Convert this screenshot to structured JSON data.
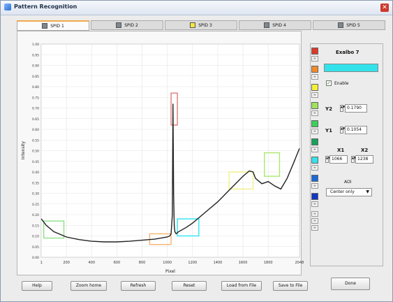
{
  "window": {
    "title": "Pattern Recognition",
    "close_glyph": "✕"
  },
  "tabs": [
    {
      "label": "SPID 1",
      "swatch": "#7f8790",
      "active": true
    },
    {
      "label": "SPID 2",
      "swatch": "#7f8790",
      "active": false
    },
    {
      "label": "SPID 3",
      "swatch": "#f6e83a",
      "active": false
    },
    {
      "label": "SPID 4",
      "swatch": "#7f8790",
      "active": false
    },
    {
      "label": "SPID 5",
      "swatch": "#7f8790",
      "active": false
    }
  ],
  "chart_data": {
    "type": "line",
    "xlabel": "Pixel",
    "ylabel": "Intensity",
    "xlim": [
      0,
      2048
    ],
    "ylim": [
      0,
      1.0
    ],
    "xticks": [
      1,
      200,
      400,
      600,
      800,
      1000,
      1200,
      1400,
      1600,
      1800,
      2048
    ],
    "yticks": [
      "0.00",
      "0.05",
      "0.10",
      "0.15",
      "0.20",
      "0.25",
      "0.30",
      "0.35",
      "0.40",
      "0.45",
      "0.50",
      "0.55",
      "0.60",
      "0.65",
      "0.70",
      "0.75",
      "0.80",
      "0.85",
      "0.90",
      "0.95",
      "1.00"
    ],
    "grid": true,
    "series": [
      {
        "color": "#222222",
        "x": [
          1,
          40,
          100,
          200,
          300,
          400,
          500,
          600,
          700,
          800,
          900,
          950,
          1000,
          1020,
          1030,
          1040,
          1045,
          1050,
          1055,
          1060,
          1070,
          1090,
          1150,
          1200,
          1300,
          1400,
          1500,
          1600,
          1650,
          1680,
          1700,
          1750,
          1800,
          1850,
          1900,
          1950,
          2000,
          2048
        ],
        "y": [
          0.18,
          0.15,
          0.12,
          0.095,
          0.083,
          0.075,
          0.072,
          0.072,
          0.075,
          0.08,
          0.085,
          0.09,
          0.095,
          0.1,
          0.11,
          0.2,
          0.72,
          0.3,
          0.15,
          0.12,
          0.11,
          0.12,
          0.14,
          0.16,
          0.21,
          0.26,
          0.32,
          0.38,
          0.405,
          0.4,
          0.37,
          0.345,
          0.355,
          0.335,
          0.32,
          0.37,
          0.44,
          0.51
        ]
      }
    ],
    "regions": [
      {
        "x1": 20,
        "x2": 180,
        "y1": 0.09,
        "y2": 0.17,
        "color": "#8fe08a"
      },
      {
        "x1": 860,
        "x2": 1030,
        "y1": 0.06,
        "y2": 0.11,
        "color": "#f4b370"
      },
      {
        "x1": 1030,
        "x2": 1080,
        "y1": 0.62,
        "y2": 0.77,
        "color": "#e07c7c"
      },
      {
        "x1": 1080,
        "x2": 1250,
        "y1": 0.1,
        "y2": 0.18,
        "color": "#2ee4ee"
      },
      {
        "x1": 1490,
        "x2": 1680,
        "y1": 0.32,
        "y2": 0.4,
        "color": "#f1f088"
      },
      {
        "x1": 1770,
        "x2": 1890,
        "y1": 0.38,
        "y2": 0.49,
        "color": "#a9e86d"
      }
    ]
  },
  "palette": [
    {
      "swatch": "#d93a2c"
    },
    {
      "swatch": "#f08a2d"
    },
    {
      "swatch": "#f5ef3a"
    },
    {
      "swatch": "#a0e35a"
    },
    {
      "swatch": "#3ad05c"
    },
    {
      "swatch": "#1aa05a"
    },
    {
      "swatch": "#33e2ea"
    },
    {
      "swatch": "#1b6ad8"
    },
    {
      "swatch": "#1436c4"
    }
  ],
  "selected": {
    "name": "Exalbo 7",
    "color": "#33e2ea",
    "enable_label": "Enable",
    "enable_checked": true,
    "y2_label": "Y2",
    "y2_value": "0.1790",
    "y1_label": "Y1",
    "y1_value": "0.1054",
    "x1_label": "X1",
    "x1_value": "1066",
    "x2_label": "X2",
    "x2_value": "1238",
    "aoi_label": "AOI",
    "aoi_value": "Center only"
  },
  "buttons": {
    "help": "Help",
    "zoom_home": "Zoom home",
    "refresh": "Refresh",
    "reset": "Reset",
    "load": "Load from File",
    "save": "Save to File",
    "done": "Done"
  }
}
